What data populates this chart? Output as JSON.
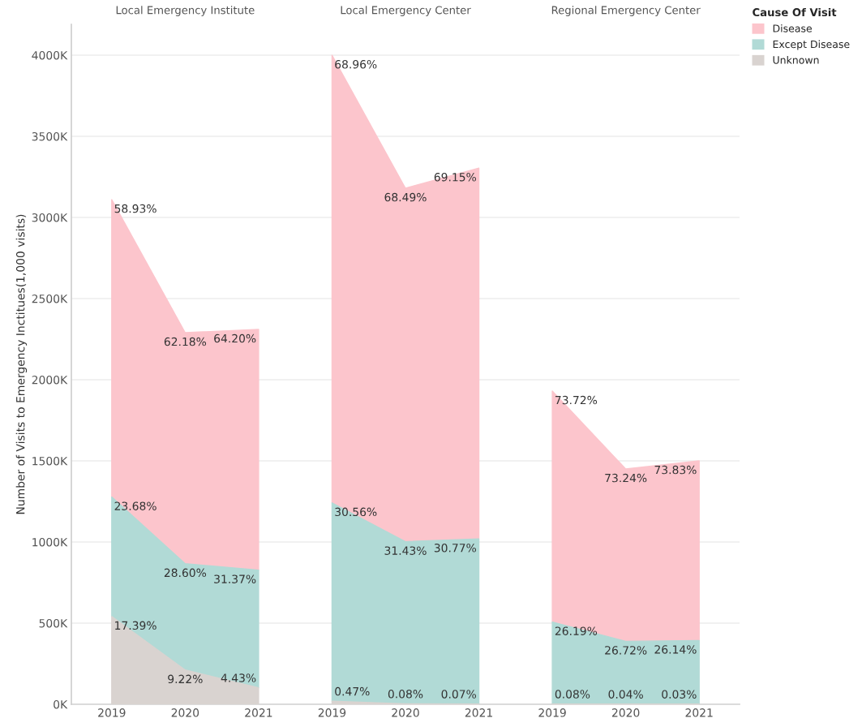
{
  "chart_data": {
    "type": "area",
    "stacked": true,
    "ylabel": "Number of Visits to Emergency Inctitues(1,000 visits)",
    "categories": [
      "2019",
      "2020",
      "2021",
      "2019",
      "2020",
      "2021",
      "2019",
      "2020",
      "2021"
    ],
    "ylim": [
      0,
      4190
    ],
    "yticks": [
      {
        "value": 0,
        "label": "0K"
      },
      {
        "value": 500,
        "label": "500K"
      },
      {
        "value": 1000,
        "label": "1000K"
      },
      {
        "value": 1500,
        "label": "1500K"
      },
      {
        "value": 2000,
        "label": "2000K"
      },
      {
        "value": 2500,
        "label": "2500K"
      },
      {
        "value": 3000,
        "label": "3000K"
      },
      {
        "value": 3500,
        "label": "3500K"
      },
      {
        "value": 4000,
        "label": "4000K"
      }
    ],
    "grid": "y",
    "legend": "top right",
    "legend_title": "Cause Of Visit",
    "series": [
      {
        "name": "Unknown",
        "color": "#d9d3d0",
        "values": [
          541,
          211,
          102,
          null,
          null,
          null,
          null,
          null,
          null
        ]
      },
      {
        "name": "Except Disease",
        "color": "#b1dad6",
        "values": [
          736,
          655,
          725,
          null,
          null,
          null,
          null,
          null,
          null
        ]
      },
      {
        "name": "Disease",
        "color": "#fcc5cc",
        "values": [
          1833,
          1424,
          1483,
          null,
          null,
          null,
          null,
          null,
          null
        ]
      },
      {
        "color": "#d9d3d0",
        "values": [
          null,
          null,
          null,
          19,
          3,
          2,
          null,
          null,
          null
        ]
      },
      {
        "color": "#b1dad6",
        "values": [
          null,
          null,
          null,
          1222,
          999,
          1017,
          null,
          null,
          null
        ]
      },
      {
        "color": "#fcc5cc",
        "values": [
          null,
          null,
          null,
          2758,
          2178,
          2285,
          null,
          null,
          null
        ]
      },
      {
        "color": "#d9d3d0",
        "values": [
          null,
          null,
          null,
          null,
          null,
          null,
          2,
          1,
          1
        ]
      },
      {
        "color": "#b1dad6",
        "values": [
          null,
          null,
          null,
          null,
          null,
          null,
          505,
          387,
          392
        ]
      },
      {
        "color": "#fcc5cc",
        "values": [
          null,
          null,
          null,
          null,
          null,
          null,
          1423,
          1062,
          1107
        ]
      }
    ],
    "annotations": [
      "Local Emergency Institute",
      "Local Emergency Center",
      "Regional Emergency Center",
      "17.39%",
      "9.22%",
      "4.43%",
      "23.68%",
      "28.60%",
      "31.37%",
      "58.93%",
      "62.18%",
      "64.20%",
      "0.47%",
      "0.08%",
      "0.07%",
      "30.56%",
      "31.43%",
      "30.77%",
      "68.96%",
      "68.49%",
      "69.15%",
      "0.08%",
      "0.04%",
      "0.03%",
      "26.19%",
      "26.72%",
      "26.14%",
      "73.72%",
      "73.24%",
      "73.83%"
    ]
  }
}
